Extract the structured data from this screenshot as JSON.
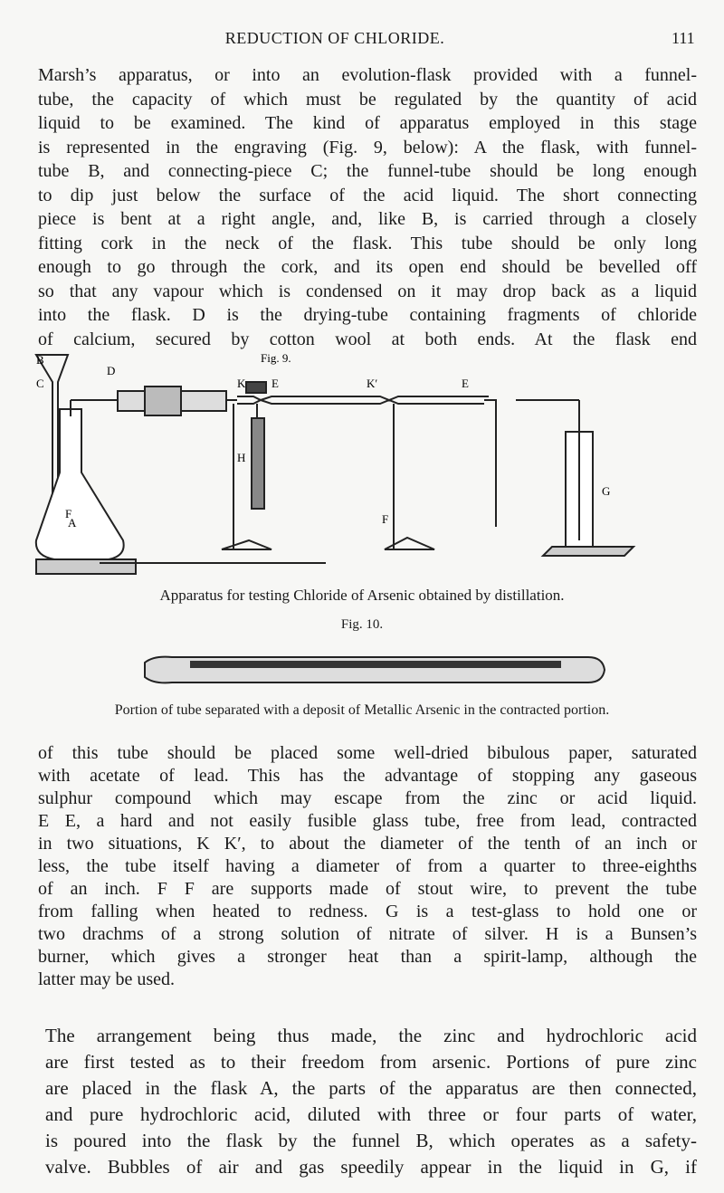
{
  "header": {
    "title": "REDUCTION OF CHLORIDE.",
    "page_number": "111"
  },
  "paragraphs": [
    [
      "Marsh’s apparatus, or into an evolution-flask provided with a funnel-",
      "tube, the capacity of which must be regulated by the quantity of acid",
      "liquid to be examined. The kind of apparatus employed in this stage",
      "is represented in the engraving (Fig. 9, below): A the flask, with funnel-",
      "tube B, and connecting-piece C; the funnel-tube should be long enough",
      "to dip just below the surface of the acid liquid. The short connecting",
      "piece is bent at a right angle, and, like B, is carried through a closely",
      "fitting cork in the neck of the flask. This tube should be only long",
      "enough to go through the cork, and its open end should be bevelled off",
      "so that any vapour which is condensed on it may drop back as a liquid",
      "into the flask. D is the drying-tube containing fragments of chloride",
      "of calcium, secured by cotton wool at both ends. At the flask end"
    ],
    [
      "of this tube should be placed some well-dried bibulous paper, saturated",
      "with acetate of lead. This has the advantage of stopping any gaseous",
      "sulphur compound which may escape from the zinc or acid liquid.",
      "E E, a hard and not easily fusible glass tube, free from lead, contracted",
      "in two situations, K K′, to about the diameter of the tenth of an inch or",
      "less, the tube itself having a diameter of from a quarter to three-eighths",
      "of an inch. F F are supports made of stout wire, to prevent the tube",
      "from falling when heated to redness. G is a test-glass to hold one or",
      "two drachms of a strong solution of nitrate of silver. H is a Bunsen’s",
      "burner, which gives a stronger heat than a spirit-lamp, although the",
      "latter may be used."
    ],
    [
      "The arrangement being thus made, the zinc and hydrochloric acid",
      "are first tested as to their freedom from arsenic. Portions of pure zinc",
      "are placed in the flask A, the parts of the apparatus are then connected,",
      "and pure hydrochloric acid, diluted with three or four parts of water,",
      "is poured into the flask by the funnel B, which operates as a safety-",
      "valve. Bubbles of air and gas speedily appear in the liquid in G, if"
    ]
  ],
  "figures": [
    {
      "label": "Fig. 9.",
      "letters": [
        "B",
        "C",
        "D",
        "A",
        "K",
        "E",
        "K′",
        "E",
        "H",
        "F",
        "F",
        "G"
      ],
      "caption": "Apparatus for testing Chloride of Arsenic obtained by distillation."
    },
    {
      "label": "Fig. 10.",
      "caption": "Portion of tube separated with a deposit of Metallic Arsenic in the contracted portion."
    }
  ]
}
